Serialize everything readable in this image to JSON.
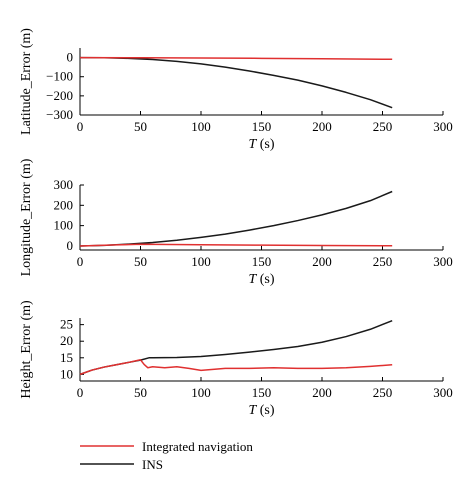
{
  "chart_data": [
    {
      "type": "line",
      "title": "",
      "xlabel": "T (s)",
      "ylabel": "Latitude_Error (m)",
      "xlim": [
        0,
        300
      ],
      "ylim": [
        -300,
        50
      ],
      "xticks": [
        0,
        50,
        100,
        150,
        200,
        250,
        300
      ],
      "yticks": [
        -300,
        -200,
        -100,
        0
      ],
      "yticklabels": [
        "−300",
        "−200",
        "−100",
        "0"
      ],
      "grid": false,
      "series": [
        {
          "name": "INS",
          "color": "#1a1a1a",
          "x": [
            0,
            20,
            40,
            60,
            80,
            100,
            120,
            140,
            160,
            180,
            200,
            220,
            240,
            258
          ],
          "y": [
            0,
            -1,
            -4,
            -10,
            -20,
            -33,
            -50,
            -70,
            -93,
            -118,
            -148,
            -182,
            -220,
            -262
          ]
        },
        {
          "name": "Integrated navigation",
          "color": "#e03030",
          "x": [
            0,
            50,
            100,
            150,
            200,
            258
          ],
          "y": [
            0,
            -1,
            -2,
            -4,
            -6,
            -9
          ]
        }
      ]
    },
    {
      "type": "line",
      "title": "",
      "xlabel": "T (s)",
      "ylabel": "Longitude_Error (m)",
      "xlim": [
        0,
        300
      ],
      "ylim": [
        -20,
        300
      ],
      "xticks": [
        0,
        50,
        100,
        150,
        200,
        250,
        300
      ],
      "yticks": [
        0,
        100,
        200,
        300
      ],
      "yticklabels": [
        "0",
        "100",
        "200",
        "300"
      ],
      "grid": false,
      "series": [
        {
          "name": "INS",
          "color": "#1a1a1a",
          "x": [
            0,
            20,
            40,
            60,
            80,
            100,
            120,
            140,
            160,
            180,
            200,
            220,
            240,
            258
          ],
          "y": [
            0,
            3,
            9,
            17,
            28,
            42,
            58,
            78,
            100,
            125,
            153,
            185,
            223,
            268
          ]
        },
        {
          "name": "Integrated navigation",
          "color": "#e03030",
          "x": [
            0,
            30,
            50,
            100,
            150,
            200,
            258
          ],
          "y": [
            0,
            5,
            8,
            6,
            4,
            2,
            1
          ]
        }
      ]
    },
    {
      "type": "line",
      "title": "",
      "xlabel": "T (s)",
      "ylabel": "Height_Error (m)",
      "xlim": [
        0,
        300
      ],
      "ylim": [
        8,
        27
      ],
      "xticks": [
        0,
        50,
        100,
        150,
        200,
        250,
        300
      ],
      "yticks": [
        10,
        15,
        20,
        25
      ],
      "yticklabels": [
        "10",
        "15",
        "20",
        "25"
      ],
      "grid": false,
      "series": [
        {
          "name": "INS",
          "color": "#1a1a1a",
          "x": [
            0,
            10,
            20,
            30,
            40,
            50,
            57,
            60,
            80,
            100,
            120,
            140,
            160,
            180,
            200,
            220,
            240,
            258
          ],
          "y": [
            10,
            11.3,
            12.2,
            12.9,
            13.6,
            14.3,
            15.0,
            15.0,
            15.1,
            15.4,
            16.0,
            16.7,
            17.5,
            18.4,
            19.7,
            21.4,
            23.6,
            26.2
          ]
        },
        {
          "name": "Integrated navigation",
          "color": "#e03030",
          "x": [
            0,
            10,
            20,
            30,
            40,
            50,
            53,
            56,
            60,
            70,
            80,
            90,
            100,
            110,
            120,
            140,
            160,
            180,
            200,
            220,
            240,
            258
          ],
          "y": [
            10,
            11.3,
            12.2,
            12.9,
            13.6,
            14.4,
            13.0,
            12.0,
            12.3,
            12.0,
            12.3,
            11.8,
            11.2,
            11.5,
            11.8,
            11.8,
            12.0,
            11.8,
            11.8,
            12.0,
            12.4,
            12.9
          ]
        }
      ]
    }
  ],
  "legend": {
    "placement": "bottom-left",
    "items": [
      {
        "label": "Integrated navigation",
        "color": "#e03030"
      },
      {
        "label": "INS",
        "color": "#1a1a1a"
      }
    ]
  }
}
